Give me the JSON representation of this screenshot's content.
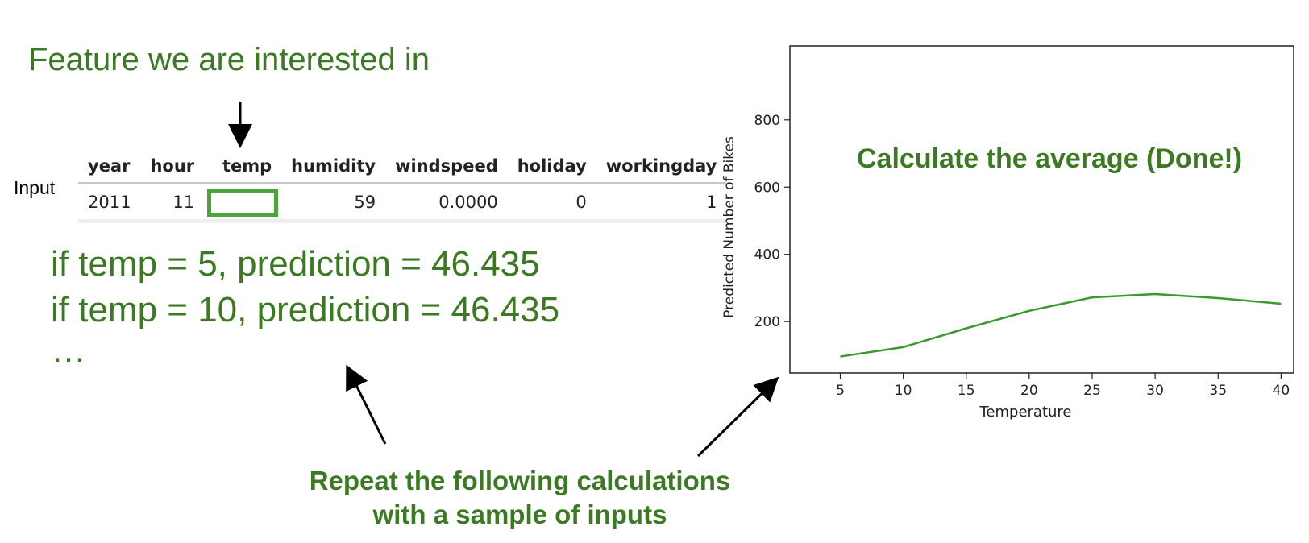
{
  "annotations": {
    "feature_title": "Feature we are interested in",
    "input_label": "Input",
    "calc_lines": [
      "if temp = 5, prediction = 46.435",
      "if temp = 10, prediction = 46.435",
      "…"
    ],
    "repeat_line1": "Repeat the following calculations",
    "repeat_line2": "with a sample of inputs",
    "average_note": "Calculate the average (Done!)"
  },
  "table": {
    "headers": [
      "year",
      "hour",
      "temp",
      "humidity",
      "windspeed",
      "holiday",
      "workingday"
    ],
    "row": [
      "2011",
      "11",
      "",
      "59",
      "0.0000",
      "0",
      "1"
    ]
  },
  "colors": {
    "annotation_green": "#3b7a23",
    "highlight_green": "#4ca53b",
    "line_green": "#3a9a2e"
  },
  "chart_data": {
    "type": "line",
    "x": [
      5,
      10,
      15,
      20,
      25,
      30,
      35,
      40
    ],
    "series": [
      {
        "values": [
          96,
          124,
          180,
          232,
          272,
          282,
          270,
          253
        ]
      }
    ],
    "xlabel": "Temperature",
    "ylabel": "Predicted Number of Bikes",
    "xticks": [
      5,
      10,
      15,
      20,
      25,
      30,
      35,
      40
    ],
    "yticks": [
      200,
      400,
      600,
      800
    ],
    "xlim": [
      1,
      41
    ],
    "ylim": [
      47,
      1020
    ],
    "grid": false
  }
}
